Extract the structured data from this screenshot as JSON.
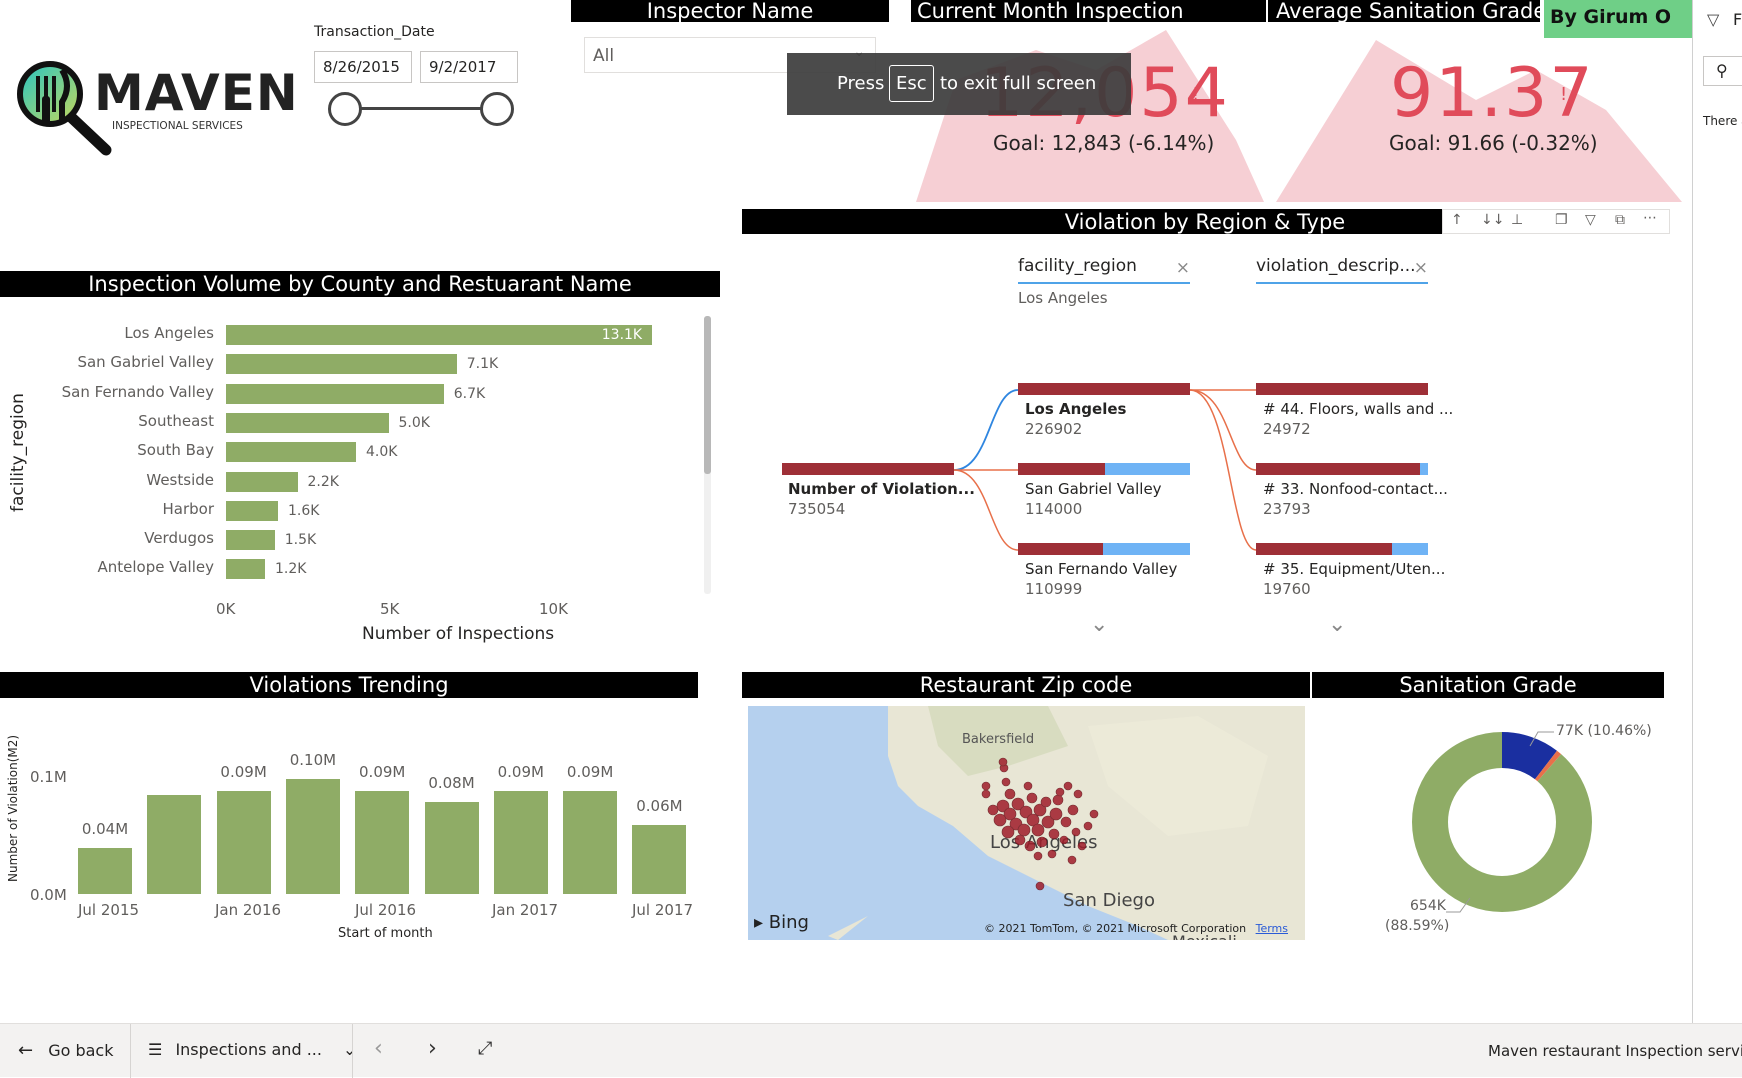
{
  "logo": {
    "brand": "MAVEN",
    "tagline": "INSPECTIONAL SERVICES"
  },
  "slicer": {
    "label": "Transaction_Date",
    "start": "8/26/2015",
    "end": "9/2/2017"
  },
  "inspector": {
    "title": "Inspector Name",
    "value": "All"
  },
  "toast": {
    "press": "Press",
    "key": "Esc",
    "rest": "to exit full screen"
  },
  "kpi_current": {
    "title": "Current Month Inspection",
    "value": "12,054",
    "goal": "Goal: 12,843 (-6.14%)",
    "flag": "!"
  },
  "kpi_grade": {
    "title": "Average Sanitation Grade",
    "value": "91.37",
    "goal": "Goal: 91.66 (-0.32%)",
    "flag": "!"
  },
  "author": {
    "label": "By Girum O"
  },
  "colors": {
    "green": "#8fac66",
    "red": "#e04b5a",
    "maroon": "#9e2f37",
    "blue": "#6fb3f5",
    "badge": "#6fcf87",
    "navy": "#1a2fa0"
  },
  "volume": {
    "title": "Inspection Volume by County and Restuarant Name",
    "ylabel": "facility_region",
    "xlabel": "Number of Inspections",
    "ticks": [
      "0K",
      "5K",
      "10K"
    ]
  },
  "decomp": {
    "title": "Violation by Region & Type",
    "filter1": "facility_region",
    "filter1_value": "Los Angeles",
    "filter2": "violation_descrip...",
    "root": {
      "label": "Number of Violation...",
      "value": "735054"
    },
    "regions": [
      {
        "label": "Los Angeles",
        "value": "226902"
      },
      {
        "label": "San Gabriel Valley",
        "value": "114000"
      },
      {
        "label": "San Fernando Valley",
        "value": "110999"
      }
    ],
    "types": [
      {
        "label": "# 44. Floors, walls and ...",
        "value": "24972"
      },
      {
        "label": "# 33. Nonfood-contact...",
        "value": "23793"
      },
      {
        "label": "# 35. Equipment/Uten...",
        "value": "19760"
      }
    ]
  },
  "trend": {
    "title": "Violations Trending",
    "ylabel": "Number of Violation(M2)",
    "xlabel": "Start of month",
    "yticks": [
      "0.1M",
      "0.0M"
    ],
    "xticks": [
      "Jul 2015",
      "Jan 2016",
      "Jul 2016",
      "Jan 2017",
      "Jul 2017"
    ]
  },
  "map": {
    "title": "Restaurant Zip code",
    "city1": "Bakersfield",
    "city2": "Los Angeles",
    "city3": "San Diego",
    "city4": "Mexicali",
    "bing": "Bing",
    "copyright": "© 2021 TomTom, © 2021 Microsoft Corporation",
    "terms": "Terms"
  },
  "donut": {
    "title": "Sanitation Grade",
    "label_small": "77K (10.46%)",
    "label_big_1": "654K",
    "label_big_2": "(88.59%)"
  },
  "rightpane": {
    "text": "There a",
    "f": "F"
  },
  "bottom": {
    "back": "Go back",
    "page": "Inspections and ...",
    "brand": "Maven restaurant Inspection services"
  },
  "chart_data": [
    {
      "type": "bar",
      "title": "Inspection Volume by County and Restuarant Name",
      "orientation": "horizontal",
      "xlabel": "Number of Inspections",
      "ylabel": "facility_region",
      "xlim": [
        0,
        13100
      ],
      "categories": [
        "Los Angeles",
        "San Gabriel Valley",
        "San Fernando Valley",
        "Southeast",
        "South Bay",
        "Westside",
        "Harbor",
        "Verdugos",
        "Antelope Valley"
      ],
      "values": [
        13100,
        7100,
        6700,
        5000,
        4000,
        2200,
        1600,
        1500,
        1200
      ],
      "labels": [
        "13.1K",
        "7.1K",
        "6.7K",
        "5.0K",
        "4.0K",
        "2.2K",
        "1.6K",
        "1.5K",
        "1.2K"
      ]
    },
    {
      "type": "bar",
      "title": "Violations Trending",
      "xlabel": "Start of month",
      "ylabel": "Number of Violation(M2)",
      "ylim": [
        0,
        0.12
      ],
      "categories": [
        "Jul 2015",
        "Oct 2015",
        "Jan 2016",
        "Apr 2016",
        "Jul 2016",
        "Oct 2016",
        "Jan 2017",
        "Apr 2017",
        "Jul 2017"
      ],
      "values": [
        0.04,
        0.086,
        0.09,
        0.1,
        0.09,
        0.08,
        0.09,
        0.09,
        0.06
      ],
      "labels": [
        "0.04M",
        "",
        "0.09M",
        "0.10M",
        "0.09M",
        "0.08M",
        "0.09M",
        "0.09M",
        "0.06M"
      ]
    },
    {
      "type": "pie",
      "title": "Sanitation Grade",
      "values": [
        88.59,
        10.46,
        0.95
      ],
      "labels": [
        "654K (88.59%)",
        "77K (10.46%)",
        ""
      ],
      "colors": [
        "#8fac66",
        "#1a2fa0",
        "#e8704a"
      ]
    }
  ]
}
